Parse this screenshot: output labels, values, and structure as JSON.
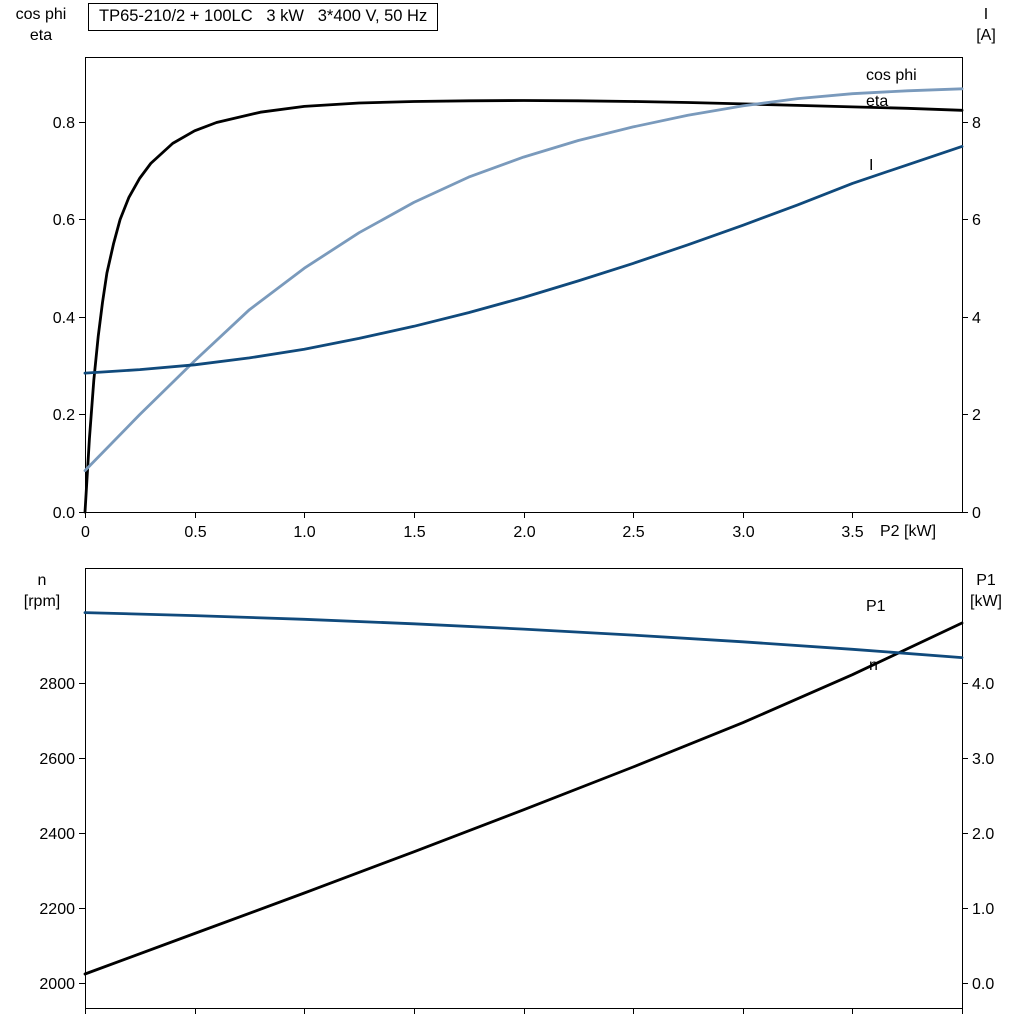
{
  "title_box": {
    "text": "TP65-210/2 + 100LC   3 kW   3*400 V, 50 Hz"
  },
  "colors": {
    "axis": "#000000",
    "eta": "#000000",
    "cos_phi": "#7a9abc",
    "current": "#104a7c",
    "p1": "#000000",
    "n": "#104a7c"
  },
  "top_chart_labels": {
    "left_line1": "cos phi",
    "left_line2": "eta",
    "right_line1": "I",
    "right_line2": "[A]"
  },
  "bottom_chart_labels": {
    "left_line1": "n",
    "left_line2": "[rpm]",
    "right_line1": "P1",
    "right_line2": "[kW]"
  },
  "chart_data": [
    {
      "type": "line",
      "name": "motor-efficiency-cosphi-current-vs-P2",
      "x_axis": {
        "label": "P2 [kW]",
        "range": [
          0,
          4.0
        ],
        "ticks": [
          0,
          0.5,
          1.0,
          1.5,
          2.0,
          2.5,
          3.0,
          3.5
        ],
        "tick_labels": [
          "0",
          "0.5",
          "1.0",
          "1.5",
          "2.0",
          "2.5",
          "3.0",
          "3.5"
        ]
      },
      "y_axis_left": {
        "label": "cos phi / eta",
        "range": [
          0,
          0.9333
        ],
        "ticks": [
          0,
          0.2,
          0.4,
          0.6,
          0.8
        ],
        "tick_labels": [
          "0.0",
          "0.2",
          "0.4",
          "0.6",
          "0.8"
        ]
      },
      "y_axis_right": {
        "label": "I [A]",
        "range": [
          0,
          9.333
        ],
        "ticks": [
          0,
          2,
          4,
          6,
          8
        ],
        "tick_labels": [
          "0",
          "2",
          "4",
          "6",
          "8"
        ]
      },
      "grid": false,
      "series": [
        {
          "name": "eta",
          "label": "eta",
          "axis": "left",
          "color_key": "eta",
          "x": [
            0,
            0.02,
            0.04,
            0.06,
            0.08,
            0.1,
            0.13,
            0.16,
            0.2,
            0.25,
            0.3,
            0.4,
            0.5,
            0.6,
            0.8,
            1.0,
            1.25,
            1.5,
            1.75,
            2.0,
            2.25,
            2.5,
            2.75,
            3.0,
            3.25,
            3.5,
            3.75,
            4.0
          ],
          "y": [
            0,
            0.15,
            0.27,
            0.36,
            0.43,
            0.49,
            0.55,
            0.6,
            0.645,
            0.685,
            0.715,
            0.756,
            0.782,
            0.799,
            0.82,
            0.832,
            0.839,
            0.842,
            0.8435,
            0.844,
            0.8435,
            0.842,
            0.84,
            0.837,
            0.834,
            0.831,
            0.828,
            0.824
          ]
        },
        {
          "name": "cos phi",
          "label": "cos phi",
          "axis": "left",
          "color_key": "cos_phi",
          "x": [
            0,
            0.25,
            0.5,
            0.75,
            1.0,
            1.25,
            1.5,
            1.75,
            2.0,
            2.25,
            2.5,
            2.75,
            3.0,
            3.25,
            3.5,
            3.75,
            4.0
          ],
          "y": [
            0.085,
            0.2,
            0.31,
            0.415,
            0.5,
            0.573,
            0.635,
            0.687,
            0.728,
            0.762,
            0.79,
            0.814,
            0.833,
            0.848,
            0.858,
            0.864,
            0.868
          ]
        },
        {
          "name": "I",
          "label": "I",
          "axis": "right",
          "color_key": "current",
          "x": [
            0,
            0.25,
            0.5,
            0.75,
            1.0,
            1.25,
            1.5,
            1.75,
            2.0,
            2.25,
            2.5,
            2.75,
            3.0,
            3.25,
            3.5,
            3.75,
            4.0
          ],
          "y": [
            2.85,
            2.92,
            3.02,
            3.16,
            3.34,
            3.56,
            3.81,
            4.09,
            4.4,
            4.74,
            5.1,
            5.48,
            5.88,
            6.3,
            6.74,
            7.12,
            7.5
          ]
        }
      ]
    },
    {
      "type": "line",
      "name": "speed-and-input-power-vs-P2",
      "x_axis": {
        "label": "",
        "range": [
          0,
          4.0
        ],
        "ticks": [
          0,
          0.5,
          1.0,
          1.5,
          2.0,
          2.5,
          3.0,
          3.5,
          4.0
        ],
        "tick_labels": []
      },
      "y_axis_left": {
        "label": "n [rpm]",
        "range": [
          1933,
          3107
        ],
        "ticks": [
          2000,
          2200,
          2400,
          2600,
          2800
        ],
        "tick_labels": [
          "2000",
          "2200",
          "2400",
          "2600",
          "2800"
        ]
      },
      "y_axis_right": {
        "label": "P1 [kW]",
        "range": [
          -0.333,
          5.533
        ],
        "ticks": [
          0,
          1,
          2,
          3,
          4
        ],
        "tick_labels": [
          "0.0",
          "1.0",
          "2.0",
          "3.0",
          "4.0"
        ]
      },
      "grid": false,
      "series": [
        {
          "name": "P1",
          "label": "P1",
          "axis": "right",
          "color_key": "p1",
          "x": [
            0,
            0.5,
            1.0,
            1.5,
            2.0,
            2.5,
            3.0,
            3.5,
            4.0
          ],
          "y": [
            0.12,
            0.66,
            1.2,
            1.75,
            2.31,
            2.88,
            3.47,
            4.11,
            4.8
          ]
        },
        {
          "name": "n",
          "label": "n",
          "axis": "left",
          "color_key": "n",
          "x": [
            0,
            0.5,
            1.0,
            1.5,
            2.0,
            2.5,
            3.0,
            3.5,
            4.0
          ],
          "y": [
            2988,
            2980,
            2970,
            2958,
            2944,
            2928,
            2910,
            2890,
            2868
          ]
        }
      ]
    }
  ]
}
